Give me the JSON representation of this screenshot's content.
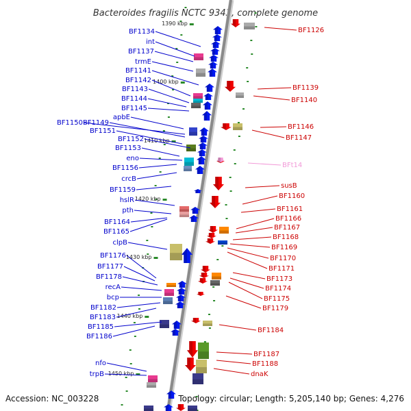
{
  "title": "Bacteroides fragilis NCTC 9343, complete genome",
  "footer": {
    "accession": "Accession: NC_003228",
    "topology": "Topology: circular; Length: 5,205,140 bp; Genes: 4,276"
  },
  "colors": {
    "left": "#0000cc",
    "right": "#cc0000",
    "pink": "#f29ad8"
  },
  "kbp_markers": [
    "1390 kbp",
    "1400 kbp",
    "1410 kbp",
    "1420 kbp",
    "1430 kbp",
    "1440 kbp",
    "1450 kbp"
  ],
  "left_labels": [
    "BF1134",
    "int",
    "BF1137",
    "trmE",
    "BF1141",
    "BF1142",
    "BF1143",
    "BF1144",
    "BF1145",
    "apbE",
    "BF1150",
    "BF1149",
    "BF1151",
    "BF1152",
    "BF1153",
    "eno",
    "BF1156",
    "crcB",
    "BF1159",
    "hslR",
    "pth",
    "BF1164",
    "BF1165",
    "clpB",
    "BF1176",
    "BF1177",
    "BF1178",
    "recA",
    "bcp",
    "BF1182",
    "BF1183",
    "BF1185",
    "BF1186",
    "nfo",
    "trpB"
  ],
  "right_labels": [
    "BF1126",
    "BF1139",
    "BF1140",
    "BF1146",
    "BF1147",
    "BFt14",
    "susB",
    "BF1160",
    "BF1161",
    "BF1166",
    "BF1167",
    "BF1168",
    "BF1169",
    "BF1170",
    "BF1171",
    "BF1173",
    "BF1174",
    "BF1175",
    "BF1179",
    "BF1184",
    "BF1187",
    "BF1188",
    "dnaK"
  ]
}
